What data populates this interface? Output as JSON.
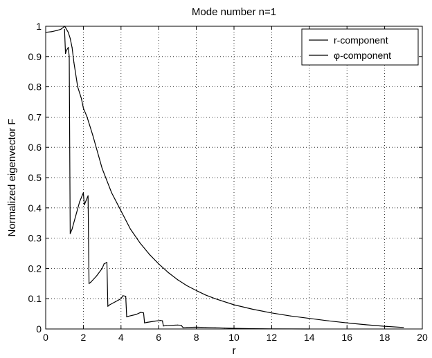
{
  "chart_data": {
    "type": "line",
    "title": "Mode number n=1",
    "xlabel": "r",
    "ylabel": "Normalized eigenvector F",
    "xlim": [
      0,
      20
    ],
    "ylim": [
      0,
      1
    ],
    "xticks": [
      0,
      2,
      4,
      6,
      8,
      10,
      12,
      14,
      16,
      18,
      20
    ],
    "yticks": [
      0,
      0.1,
      0.2,
      0.3,
      0.4,
      0.5,
      0.6,
      0.7,
      0.8,
      0.9,
      1
    ],
    "grid": true,
    "legend_position": "top-right",
    "line_color": "#000000",
    "series": [
      {
        "name": "r-component",
        "x": [
          0,
          0.3,
          0.6,
          0.8,
          0.95,
          1.0,
          1.05,
          1.2,
          1.3,
          1.4,
          1.5,
          1.7,
          1.9,
          2.0,
          2.2,
          2.5,
          3.0,
          3.5,
          4.0,
          4.5,
          5.0,
          5.5,
          6.0,
          6.5,
          7.0,
          7.5,
          8.0,
          8.5,
          9.0,
          10.0,
          11.0,
          12.0,
          13.0,
          14.0,
          15.0,
          16.0,
          17.0,
          18.0,
          19.0
        ],
        "y": [
          0.98,
          0.982,
          0.986,
          0.99,
          0.997,
          1.0,
          0.996,
          0.98,
          0.96,
          0.93,
          0.88,
          0.8,
          0.76,
          0.73,
          0.7,
          0.64,
          0.53,
          0.45,
          0.39,
          0.33,
          0.285,
          0.247,
          0.215,
          0.187,
          0.163,
          0.143,
          0.127,
          0.112,
          0.1,
          0.08,
          0.065,
          0.053,
          0.043,
          0.035,
          0.027,
          0.02,
          0.014,
          0.009,
          0.005
        ]
      },
      {
        "name": "φ-component",
        "x": [
          1.0,
          1.05,
          1.1,
          1.2,
          1.25,
          1.3,
          1.4,
          1.6,
          1.8,
          2.0,
          2.05,
          2.15,
          2.25,
          2.3,
          2.4,
          2.7,
          3.0,
          3.1,
          3.25,
          3.3,
          3.4,
          3.7,
          4.0,
          4.1,
          4.25,
          4.3,
          4.4,
          4.8,
          5.05,
          5.2,
          5.25,
          5.4,
          5.8,
          6.1,
          6.2,
          6.25,
          6.4,
          7.0,
          7.2,
          7.3,
          7.5,
          8.0,
          8.5,
          9.0,
          9.5,
          10.0,
          11.0,
          12.0,
          14.0
        ],
        "y": [
          0.99,
          0.91,
          0.92,
          0.93,
          0.9,
          0.315,
          0.33,
          0.375,
          0.42,
          0.45,
          0.41,
          0.425,
          0.44,
          0.15,
          0.155,
          0.175,
          0.2,
          0.215,
          0.22,
          0.075,
          0.08,
          0.09,
          0.1,
          0.11,
          0.108,
          0.04,
          0.042,
          0.048,
          0.055,
          0.053,
          0.02,
          0.022,
          0.026,
          0.028,
          0.027,
          0.01,
          0.011,
          0.013,
          0.012,
          0.004,
          0.005,
          0.006,
          0.005,
          0.004,
          0.003,
          0.002,
          0.001,
          0.0005,
          0.0
        ]
      }
    ]
  }
}
